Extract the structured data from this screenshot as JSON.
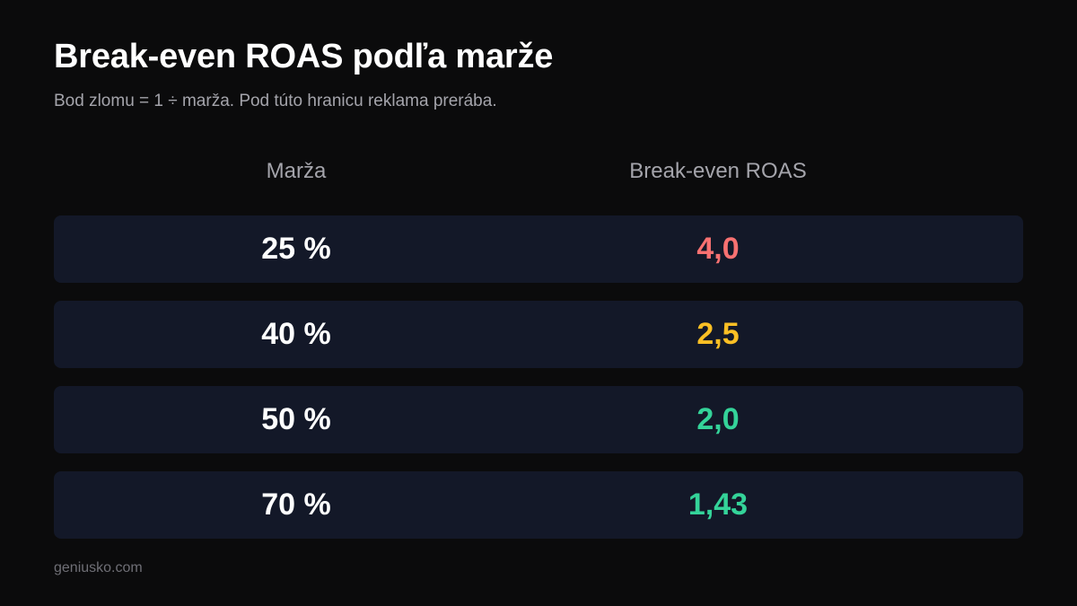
{
  "title": "Break-even ROAS podľa marže",
  "subtitle": "Bod zlomu = 1 ÷ marža. Pod túto hranicu reklama prerába.",
  "footer": "geniusko.com",
  "colors": {
    "background": "#0b0b0c",
    "row_background": "#131828",
    "high": "#f87171",
    "medium": "#fbbf24",
    "low": "#34d399"
  },
  "chart_data": {
    "type": "table",
    "columns": [
      "Marža",
      "Break-even ROAS"
    ],
    "rows": [
      {
        "margin": "25 %",
        "roas": "4,0",
        "color": "#f87171"
      },
      {
        "margin": "40 %",
        "roas": "2,5",
        "color": "#fbbf24"
      },
      {
        "margin": "50 %",
        "roas": "2,0",
        "color": "#34d399"
      },
      {
        "margin": "70 %",
        "roas": "1,43",
        "color": "#34d399"
      }
    ]
  }
}
